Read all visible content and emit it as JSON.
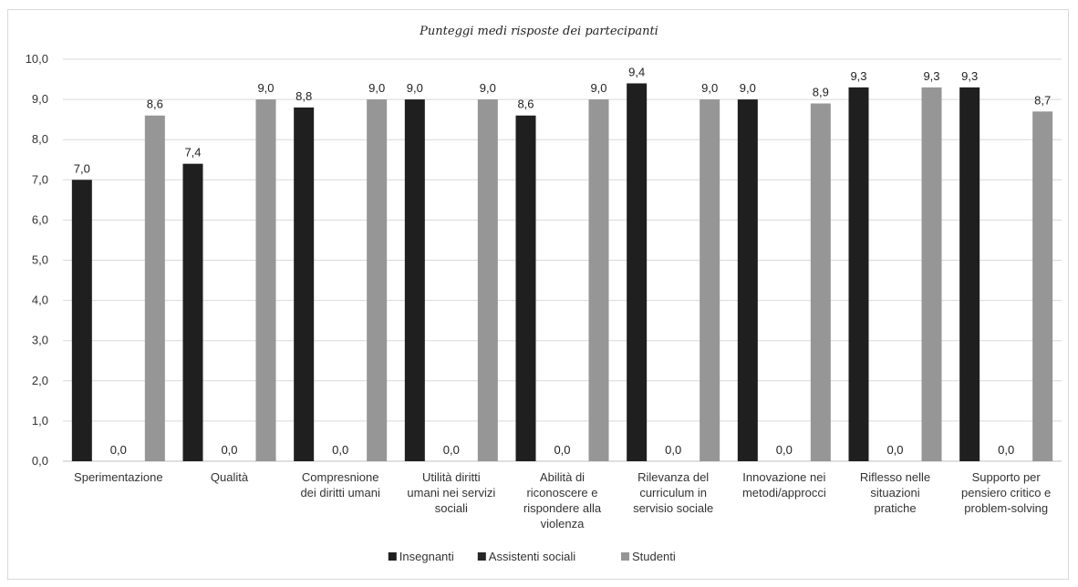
{
  "chart_data": {
    "type": "bar",
    "title": "Punteggi medi risposte dei partecipanti",
    "xlabel": "",
    "ylabel": "",
    "ylim": [
      0,
      10
    ],
    "ytick_step": 1,
    "ytick_labels": [
      "0,0",
      "1,0",
      "2,0",
      "3,0",
      "4,0",
      "5,0",
      "6,0",
      "7,0",
      "8,0",
      "9,0",
      "10,0"
    ],
    "grid": true,
    "legend_position": "bottom",
    "categories": [
      [
        "Sperimentazione"
      ],
      [
        "Qualità"
      ],
      [
        "Compresnione",
        "dei diritti umani"
      ],
      [
        "Utilità diritti",
        "umani nei servizi",
        "sociali"
      ],
      [
        "Abilità di",
        "riconoscere e",
        "rispondere alla",
        "violenza"
      ],
      [
        "Rilevanza del",
        "curriculum in",
        "servisio sociale"
      ],
      [
        "Innovazione nei",
        "metodi/approcci"
      ],
      [
        "Riflesso nelle",
        "situazioni",
        "pratiche"
      ],
      [
        "Supporto per",
        "pensiero critico e",
        "problem-solving"
      ]
    ],
    "series": [
      {
        "name": "Insegnanti",
        "color": "#1f1f1f",
        "values": [
          7.0,
          7.4,
          8.8,
          9.0,
          8.6,
          9.4,
          9.0,
          9.3,
          9.3
        ],
        "labels": [
          "7,0",
          "7,4",
          "8,8",
          "9,0",
          "8,6",
          "9,4",
          "9,0",
          "9,3",
          "9,3"
        ]
      },
      {
        "name": "Assistenti sociali",
        "color": "#262626",
        "values": [
          0.0,
          0.0,
          0.0,
          0.0,
          0.0,
          0.0,
          0.0,
          0.0,
          0.0
        ],
        "labels": [
          "0,0",
          "0,0",
          "0,0",
          "0,0",
          "0,0",
          "0,0",
          "0,0",
          "0,0",
          "0,0"
        ]
      },
      {
        "name": "Studenti",
        "color": "#969696",
        "values": [
          8.6,
          9.0,
          9.0,
          9.0,
          9.0,
          9.0,
          8.9,
          9.3,
          8.7
        ],
        "labels": [
          "8,6",
          "9,0",
          "9,0",
          "9,0",
          "9,0",
          "9,0",
          "8,9",
          "9,3",
          "8,7"
        ]
      }
    ]
  }
}
